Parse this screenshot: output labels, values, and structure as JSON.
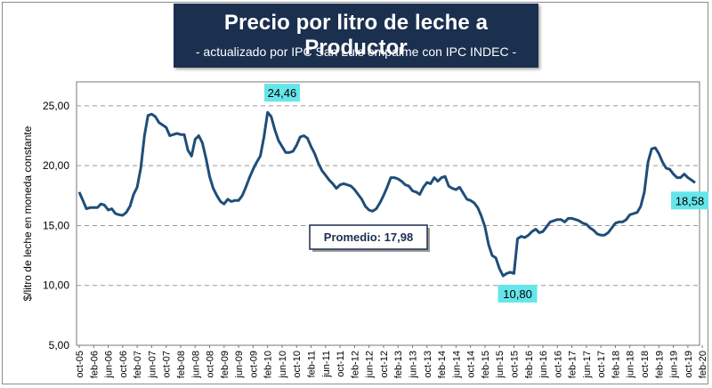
{
  "chart_data": {
    "type": "line",
    "title": "Precio por litro de leche a Productor",
    "subtitle": "- actualizado por IPC San Luis empalme con IPC INDEC -",
    "ylabel": "$/litro de leche en moneda constante",
    "xlabel": "",
    "ylim": [
      5,
      27
    ],
    "yticks": [
      "5,00",
      "10,00",
      "15,00",
      "20,00",
      "25,00"
    ],
    "ytick_values": [
      5,
      10,
      15,
      20,
      25
    ],
    "grid": "horizontal dashed",
    "xticks": [
      "oct-05",
      "feb-06",
      "jun-06",
      "oct-06",
      "feb-07",
      "jun-07",
      "oct-07",
      "feb-08",
      "jun-08",
      "oct-08",
      "feb-09",
      "jun-09",
      "oct-09",
      "feb-10",
      "jun-10",
      "oct-10",
      "feb-11",
      "jun-11",
      "oct-11",
      "feb-12",
      "jun-12",
      "oct-12",
      "feb-13",
      "jun-13",
      "oct-13",
      "feb-14",
      "jun-14",
      "oct-14",
      "feb-15",
      "jun-15",
      "oct-15",
      "feb-16",
      "jun-16",
      "oct-16",
      "feb-17",
      "jun-17",
      "oct-17",
      "feb-18",
      "jun-18",
      "oct-18",
      "feb-19",
      "jun-19",
      "oct-19",
      "feb-20"
    ],
    "series": [
      {
        "name": "Precio por litro",
        "color": "#1f4e79",
        "x_start": "oct-05",
        "frequency": "monthly",
        "values": [
          17.8,
          17.1,
          16.4,
          16.5,
          16.5,
          16.5,
          16.8,
          16.7,
          16.3,
          16.4,
          16.0,
          15.9,
          15.85,
          16.1,
          16.6,
          17.6,
          18.2,
          19.8,
          22.5,
          24.2,
          24.3,
          24.1,
          23.6,
          23.4,
          23.2,
          22.5,
          22.6,
          22.7,
          22.6,
          22.6,
          21.3,
          20.8,
          22.2,
          22.5,
          21.9,
          20.6,
          19.1,
          18.1,
          17.5,
          17.0,
          16.8,
          17.2,
          17.0,
          17.1,
          17.1,
          17.5,
          18.2,
          19.0,
          19.7,
          20.3,
          20.8,
          22.4,
          24.46,
          24.1,
          23.0,
          22.1,
          21.6,
          21.1,
          21.1,
          21.2,
          21.7,
          22.4,
          22.5,
          22.3,
          21.6,
          21.0,
          20.2,
          19.6,
          19.2,
          18.8,
          18.5,
          18.1,
          18.4,
          18.5,
          18.4,
          18.3,
          18.0,
          17.6,
          17.2,
          16.6,
          16.3,
          16.2,
          16.4,
          16.9,
          17.5,
          18.2,
          19.0,
          19.0,
          18.9,
          18.7,
          18.4,
          18.3,
          17.9,
          17.8,
          17.6,
          18.2,
          18.6,
          18.5,
          19.0,
          18.7,
          19.0,
          19.1,
          18.3,
          18.1,
          18.0,
          18.2,
          17.7,
          17.2,
          17.1,
          16.9,
          16.5,
          15.8,
          14.9,
          13.4,
          12.5,
          12.3,
          11.4,
          10.8,
          11.0,
          11.1,
          11.0,
          13.9,
          14.1,
          14.0,
          14.2,
          14.5,
          14.7,
          14.4,
          14.5,
          14.9,
          15.3,
          15.4,
          15.5,
          15.5,
          15.3,
          15.6,
          15.6,
          15.5,
          15.4,
          15.2,
          15.1,
          14.8,
          14.6,
          14.3,
          14.2,
          14.2,
          14.4,
          14.8,
          15.2,
          15.3,
          15.3,
          15.5,
          15.9,
          16.0,
          16.1,
          16.6,
          17.8,
          20.3,
          21.4,
          21.5,
          21.0,
          20.3,
          19.8,
          19.7,
          19.3,
          19.0,
          19.0,
          19.3,
          19.0,
          18.8,
          18.58
        ]
      }
    ],
    "annotations": [
      {
        "text": "24,46",
        "x_index": 56,
        "value": 24.46,
        "kind": "max"
      },
      {
        "text": "10,80",
        "x_index": 121,
        "value": 10.8,
        "kind": "min"
      },
      {
        "text": "18,58",
        "x_index": 173,
        "value": 18.58,
        "kind": "last"
      }
    ],
    "average": {
      "label": "Promedio: 17,98",
      "value": 17.98
    },
    "colors": {
      "line": "#1f4e79",
      "label_bg": "#66e5ea",
      "title_bg": "#1b2f4f",
      "grid": "#999999"
    }
  }
}
